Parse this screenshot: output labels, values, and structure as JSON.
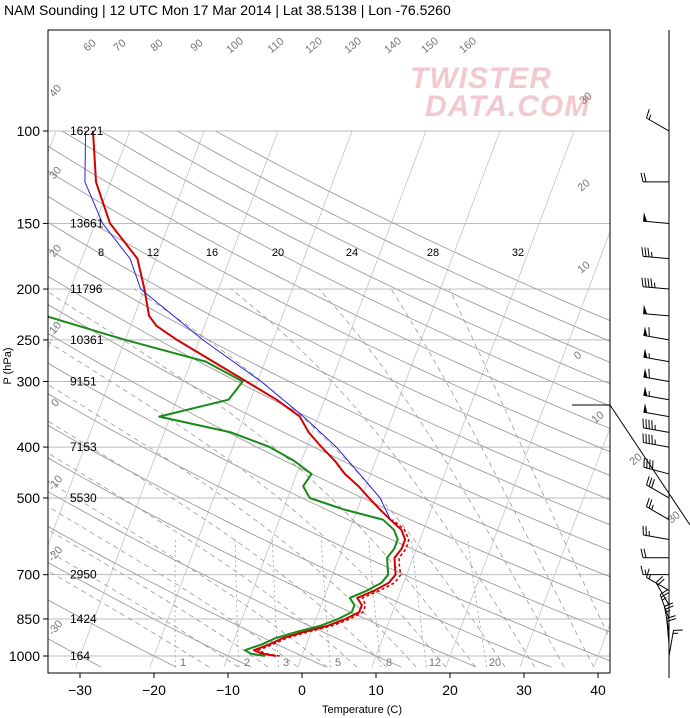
{
  "title": "NAM Sounding | 12 UTC Mon 17 Mar 2014 | Lat 38.5138 | Lon -76.5260",
  "watermark": [
    "TWISTER",
    "DATA.COM"
  ],
  "chart_data": {
    "type": "line",
    "title": "NAM Sounding | 12 UTC Mon 17 Mar 2014 | Lat 38.5138 | Lon -76.5260",
    "xlabel": "Temperature (C)",
    "ylabel": "P (hPa)",
    "xlim": [
      -35,
      47
    ],
    "ylim": [
      1050,
      100
    ],
    "y_scale": "log",
    "grid": true,
    "x_ticks": [
      -30,
      -20,
      -10,
      0,
      10,
      20,
      30,
      40
    ],
    "p_ticks": [
      100,
      150,
      200,
      250,
      300,
      400,
      500,
      700,
      850,
      1000
    ],
    "heights": [
      {
        "p": 100,
        "label": "16221"
      },
      {
        "p": 150,
        "label": "13661"
      },
      {
        "p": 200,
        "label": "11796"
      },
      {
        "p": 250,
        "label": "10361"
      },
      {
        "p": 300,
        "label": "9151"
      },
      {
        "p": 400,
        "label": "7153"
      },
      {
        "p": 500,
        "label": "5530"
      },
      {
        "p": 700,
        "label": "2950"
      },
      {
        "p": 850,
        "label": "1424"
      },
      {
        "p": 1000,
        "label": "164"
      }
    ],
    "mixing_ratio_labels": [
      "1",
      "2",
      "3",
      "5",
      "8",
      "12",
      "20"
    ],
    "isotherm_labels_top": [
      "8",
      "12",
      "16",
      "20",
      "24",
      "28",
      "32"
    ],
    "theta_labels": [
      "60",
      "70",
      "80",
      "90",
      "100",
      "110",
      "120",
      "130",
      "140",
      "150",
      "160"
    ],
    "left_theta_labels": [
      "40",
      "30",
      "20",
      "10",
      "0",
      "-10",
      "-20",
      "-30"
    ],
    "right_theta_labels": [
      "30",
      "20",
      "10",
      "0",
      "10",
      "20",
      "30"
    ],
    "series": [
      {
        "name": "temperature",
        "color": "#d40000",
        "points": [
          {
            "p": 1000,
            "t": -3.5
          },
          {
            "p": 990,
            "t": -5.5
          },
          {
            "p": 975,
            "t": -6.8
          },
          {
            "p": 950,
            "t": -5.0
          },
          {
            "p": 925,
            "t": -3.5
          },
          {
            "p": 900,
            "t": -1.0
          },
          {
            "p": 875,
            "t": 2.0
          },
          {
            "p": 850,
            "t": 4.0
          },
          {
            "p": 825,
            "t": 5.5
          },
          {
            "p": 800,
            "t": 5.5
          },
          {
            "p": 775,
            "t": 4.5
          },
          {
            "p": 750,
            "t": 6.5
          },
          {
            "p": 725,
            "t": 8.0
          },
          {
            "p": 700,
            "t": 8.5
          },
          {
            "p": 675,
            "t": 8.0
          },
          {
            "p": 650,
            "t": 7.5
          },
          {
            "p": 625,
            "t": 8.0
          },
          {
            "p": 600,
            "t": 8.0
          },
          {
            "p": 575,
            "t": 7.0
          },
          {
            "p": 550,
            "t": 5.0
          },
          {
            "p": 525,
            "t": 3.0
          },
          {
            "p": 500,
            "t": 1.0
          },
          {
            "p": 475,
            "t": -1.0
          },
          {
            "p": 450,
            "t": -3.5
          },
          {
            "p": 425,
            "t": -5.5
          },
          {
            "p": 400,
            "t": -8.0
          },
          {
            "p": 375,
            "t": -10.5
          },
          {
            "p": 350,
            "t": -12.5
          },
          {
            "p": 325,
            "t": -16.5
          },
          {
            "p": 300,
            "t": -21.5
          },
          {
            "p": 275,
            "t": -27.0
          },
          {
            "p": 250,
            "t": -33.0
          },
          {
            "p": 235,
            "t": -36.5
          },
          {
            "p": 225,
            "t": -38.0
          },
          {
            "p": 200,
            "t": -40.0
          },
          {
            "p": 175,
            "t": -42.5
          },
          {
            "p": 150,
            "t": -48.0
          },
          {
            "p": 125,
            "t": -52.0
          },
          {
            "p": 100,
            "t": -55.0
          }
        ]
      },
      {
        "name": "virtual-temperature",
        "color": "#d40000",
        "dashed": true,
        "points": [
          {
            "p": 1000,
            "t": -3.0
          },
          {
            "p": 990,
            "t": -5.0
          },
          {
            "p": 975,
            "t": -6.2
          },
          {
            "p": 950,
            "t": -4.5
          },
          {
            "p": 925,
            "t": -3.0
          },
          {
            "p": 900,
            "t": -0.5
          },
          {
            "p": 875,
            "t": 2.6
          },
          {
            "p": 850,
            "t": 4.6
          },
          {
            "p": 825,
            "t": 6.0
          },
          {
            "p": 800,
            "t": 6.0
          },
          {
            "p": 775,
            "t": 5.2
          },
          {
            "p": 750,
            "t": 7.2
          },
          {
            "p": 725,
            "t": 8.8
          },
          {
            "p": 700,
            "t": 9.2
          },
          {
            "p": 675,
            "t": 8.6
          },
          {
            "p": 650,
            "t": 8.1
          },
          {
            "p": 625,
            "t": 8.6
          },
          {
            "p": 600,
            "t": 8.5
          },
          {
            "p": 575,
            "t": 7.4
          },
          {
            "p": 550,
            "t": 5.3
          }
        ]
      },
      {
        "name": "dewpoint",
        "color": "#1a8a1a",
        "points": [
          {
            "p": 1000,
            "t": -5.0
          },
          {
            "p": 990,
            "t": -7.0
          },
          {
            "p": 975,
            "t": -8.0
          },
          {
            "p": 950,
            "t": -6.0
          },
          {
            "p": 925,
            "t": -4.5
          },
          {
            "p": 900,
            "t": -2.0
          },
          {
            "p": 875,
            "t": 1.0
          },
          {
            "p": 850,
            "t": 3.0
          },
          {
            "p": 825,
            "t": 4.5
          },
          {
            "p": 800,
            "t": 4.5
          },
          {
            "p": 775,
            "t": 3.5
          },
          {
            "p": 750,
            "t": 5.5
          },
          {
            "p": 725,
            "t": 7.0
          },
          {
            "p": 700,
            "t": 7.5
          },
          {
            "p": 675,
            "t": 7.0
          },
          {
            "p": 650,
            "t": 6.5
          },
          {
            "p": 625,
            "t": 7.0
          },
          {
            "p": 600,
            "t": 7.0
          },
          {
            "p": 575,
            "t": 6.0
          },
          {
            "p": 550,
            "t": 4.0
          },
          {
            "p": 525,
            "t": -2.0
          },
          {
            "p": 500,
            "t": -7.0
          },
          {
            "p": 475,
            "t": -8.5
          },
          {
            "p": 450,
            "t": -8.0
          },
          {
            "p": 425,
            "t": -11.0
          },
          {
            "p": 400,
            "t": -15.0
          },
          {
            "p": 375,
            "t": -21.0
          },
          {
            "p": 350,
            "t": -31.5
          },
          {
            "p": 325,
            "t": -23.0
          },
          {
            "p": 300,
            "t": -22.0
          },
          {
            "p": 275,
            "t": -28.0
          },
          {
            "p": 250,
            "t": -40.0
          },
          {
            "p": 225,
            "t": -52.0
          },
          {
            "p": 200,
            "t": -55.0
          },
          {
            "p": 175,
            "t": -59.5
          },
          {
            "p": 150,
            "t": -66.0
          },
          {
            "p": 125,
            "t": -68.0
          },
          {
            "p": 100,
            "t": -68.5
          }
        ]
      },
      {
        "name": "parcel",
        "color": "#2323dd",
        "points": [
          {
            "p": 550,
            "t": 5.0
          },
          {
            "p": 500,
            "t": 2.5
          },
          {
            "p": 450,
            "t": -1.5
          },
          {
            "p": 400,
            "t": -6.0
          },
          {
            "p": 350,
            "t": -12.0
          },
          {
            "p": 300,
            "t": -19.5
          },
          {
            "p": 250,
            "t": -29.5
          },
          {
            "p": 200,
            "t": -40.5
          },
          {
            "p": 175,
            "t": -43.5
          },
          {
            "p": 150,
            "t": -49.0
          },
          {
            "p": 125,
            "t": -53.5
          },
          {
            "p": 100,
            "t": -56.0
          }
        ]
      }
    ],
    "wind_barbs": [
      {
        "p": 100,
        "dir": 300,
        "kt": 15
      },
      {
        "p": 125,
        "dir": 270,
        "kt": 20
      },
      {
        "p": 150,
        "dir": 275,
        "kt": 50
      },
      {
        "p": 175,
        "dir": 275,
        "kt": 35
      },
      {
        "p": 200,
        "dir": 275,
        "kt": 45
      },
      {
        "p": 225,
        "dir": 275,
        "kt": 50
      },
      {
        "p": 250,
        "dir": 280,
        "kt": 60
      },
      {
        "p": 275,
        "dir": 280,
        "kt": 55
      },
      {
        "p": 300,
        "dir": 280,
        "kt": 60
      },
      {
        "p": 325,
        "dir": 280,
        "kt": 55
      },
      {
        "p": 350,
        "dir": 280,
        "kt": 50
      },
      {
        "p": 375,
        "dir": 280,
        "kt": 45
      },
      {
        "p": 400,
        "dir": 280,
        "kt": 45
      },
      {
        "p": 450,
        "dir": 285,
        "kt": 40
      },
      {
        "p": 500,
        "dir": 300,
        "kt": 30
      },
      {
        "p": 550,
        "dir": 300,
        "kt": 25
      },
      {
        "p": 600,
        "dir": 280,
        "kt": 25
      },
      {
        "p": 650,
        "dir": 270,
        "kt": 20
      },
      {
        "p": 700,
        "dir": 270,
        "kt": 15
      },
      {
        "p": 750,
        "dir": 300,
        "kt": 15
      },
      {
        "p": 800,
        "dir": 330,
        "kt": 20
      },
      {
        "p": 850,
        "dir": 340,
        "kt": 25
      },
      {
        "p": 900,
        "dir": 350,
        "kt": 25
      },
      {
        "p": 950,
        "dir": 355,
        "kt": 20
      },
      {
        "p": 1000,
        "dir": 10,
        "kt": 15
      }
    ],
    "hodograph_labels": [
      "30",
      "20",
      "10",
      "0",
      "10",
      "20",
      "30"
    ]
  }
}
